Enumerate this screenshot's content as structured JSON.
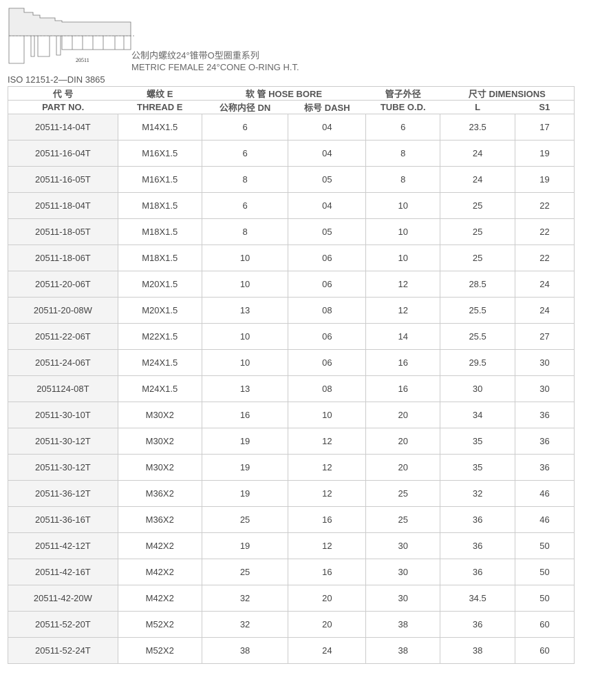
{
  "drawing": {
    "label": "20511"
  },
  "title_cn": "公制内螺纹24°锥带O型圈重系列",
  "title_en": "METRIC FEMALE 24°CONE O-RING H.T.",
  "standard": "ISO 12151-2—DIN 3865",
  "header_row1": [
    "代 号",
    "螺纹 E",
    "软 管 HOSE BORE",
    "管子外径",
    "尺寸 DIMENSIONS"
  ],
  "header_row2": [
    "PART NO.",
    "THREAD E",
    "公称内径 DN",
    "标号 DASH",
    "TUBE O.D.",
    "L",
    "S1"
  ],
  "rows": [
    [
      "20511-14-04T",
      "M14X1.5",
      "6",
      "04",
      "6",
      "23.5",
      "17"
    ],
    [
      "20511-16-04T",
      "M16X1.5",
      "6",
      "04",
      "8",
      "24",
      "19"
    ],
    [
      "20511-16-05T",
      "M16X1.5",
      "8",
      "05",
      "8",
      "24",
      "19"
    ],
    [
      "20511-18-04T",
      "M18X1.5",
      "6",
      "04",
      "10",
      "25",
      "22"
    ],
    [
      "20511-18-05T",
      "M18X1.5",
      "8",
      "05",
      "10",
      "25",
      "22"
    ],
    [
      "20511-18-06T",
      "M18X1.5",
      "10",
      "06",
      "10",
      "25",
      "22"
    ],
    [
      "20511-20-06T",
      "M20X1.5",
      "10",
      "06",
      "12",
      "28.5",
      "24"
    ],
    [
      "20511-20-08W",
      "M20X1.5",
      "13",
      "08",
      "12",
      "25.5",
      "24"
    ],
    [
      "20511-22-06T",
      "M22X1.5",
      "10",
      "06",
      "14",
      "25.5",
      "27"
    ],
    [
      "20511-24-06T",
      "M24X1.5",
      "10",
      "06",
      "16",
      "29.5",
      "30"
    ],
    [
      "2051124-08T",
      "M24X1.5",
      "13",
      "08",
      "16",
      "30",
      "30"
    ],
    [
      "20511-30-10T",
      "M30X2",
      "16",
      "10",
      "20",
      "34",
      "36"
    ],
    [
      "20511-30-12T",
      "M30X2",
      "19",
      "12",
      "20",
      "35",
      "36"
    ],
    [
      "20511-30-12T",
      "M30X2",
      "19",
      "12",
      "20",
      "35",
      "36"
    ],
    [
      "20511-36-12T",
      "M36X2",
      "19",
      "12",
      "25",
      "32",
      "46"
    ],
    [
      "20511-36-16T",
      "M36X2",
      "25",
      "16",
      "25",
      "36",
      "46"
    ],
    [
      "20511-42-12T",
      "M42X2",
      "19",
      "12",
      "30",
      "36",
      "50"
    ],
    [
      "20511-42-16T",
      "M42X2",
      "25",
      "16",
      "30",
      "36",
      "50"
    ],
    [
      "20511-42-20W",
      "M42X2",
      "32",
      "20",
      "30",
      "34.5",
      "50"
    ],
    [
      "20511-52-20T",
      "M52X2",
      "32",
      "20",
      "38",
      "36",
      "60"
    ],
    [
      "20511-52-24T",
      "M52X2",
      "38",
      "24",
      "38",
      "38",
      "60"
    ]
  ]
}
